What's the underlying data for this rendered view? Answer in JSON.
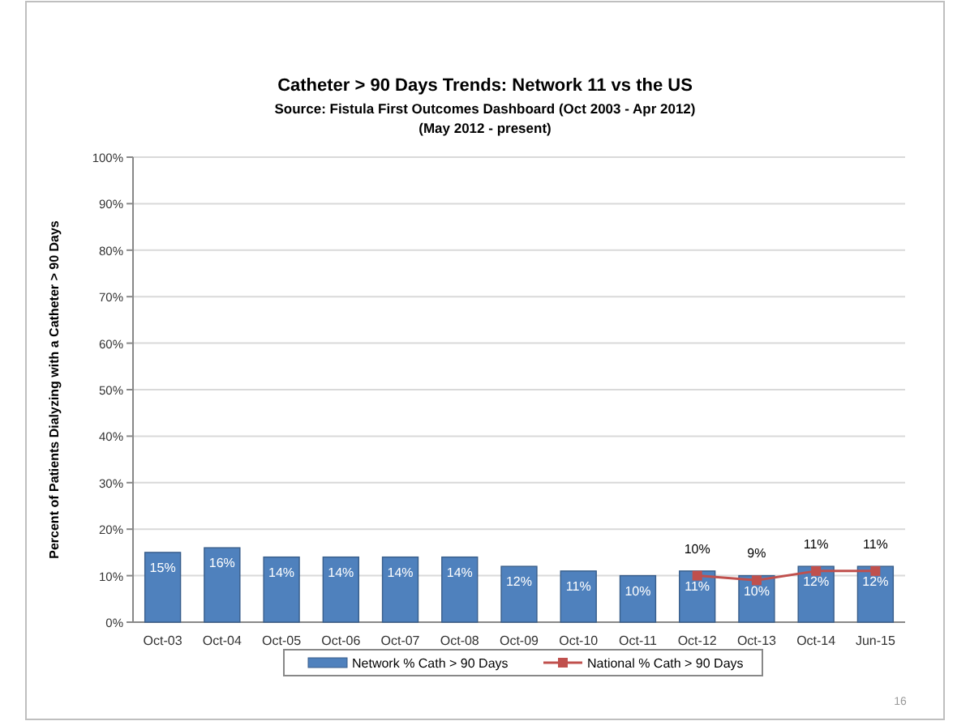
{
  "chart_data": {
    "type": "bar",
    "title": "Catheter > 90 Days Trends:  Network 11 vs the US",
    "subtitle": "Source:  Fistula First Outcomes Dashboard (Oct 2003 - Apr 2012)\n(May 2012 - present)",
    "ylabel": "Percent of Patients Dialyzing with a Catheter > 90 Days",
    "categories": [
      "Oct-03",
      "Oct-04",
      "Oct-05",
      "Oct-06",
      "Oct-07",
      "Oct-08",
      "Oct-09",
      "Oct-10",
      "Oct-11",
      "Oct-12",
      "Oct-13",
      "Oct-14",
      "Jun-15"
    ],
    "series": [
      {
        "name": "Network % Cath > 90 Days",
        "color": "#4f81bd",
        "values": [
          15,
          16,
          14,
          14,
          14,
          14,
          12,
          11,
          10,
          11,
          10,
          12,
          12
        ],
        "value_labels": [
          "15%",
          "16%",
          "14%",
          "14%",
          "14%",
          "14%",
          "12%",
          "11%",
          "10%",
          "11%",
          "10%",
          "12%",
          "12%"
        ]
      },
      {
        "name": "National % Cath > 90 Days",
        "type": "line",
        "color": "#c0504d",
        "marker": "square",
        "values": [
          null,
          null,
          null,
          null,
          null,
          null,
          null,
          null,
          null,
          10,
          9,
          11,
          11
        ],
        "value_labels": [
          null,
          null,
          null,
          null,
          null,
          null,
          null,
          null,
          null,
          "10%",
          "9%",
          "11%",
          "11%"
        ]
      }
    ],
    "ylim": [
      0,
      100
    ],
    "yticks": [
      {
        "value": 0,
        "label": "0%"
      },
      {
        "value": 10,
        "label": "10%"
      },
      {
        "value": 20,
        "label": "20%"
      },
      {
        "value": 30,
        "label": "30%"
      },
      {
        "value": 40,
        "label": "40%"
      },
      {
        "value": 50,
        "label": "50%"
      },
      {
        "value": 60,
        "label": "60%"
      },
      {
        "value": 70,
        "label": "70%"
      },
      {
        "value": 80,
        "label": "80%"
      },
      {
        "value": 90,
        "label": "90%"
      },
      {
        "value": 100,
        "label": "100%"
      }
    ],
    "grid": "y",
    "legend": "bottom",
    "annotations": [
      "16"
    ]
  }
}
